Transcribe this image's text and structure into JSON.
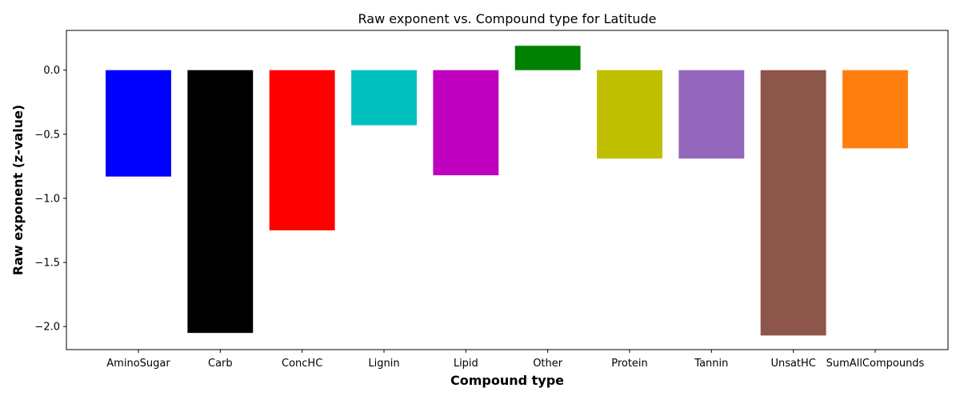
{
  "chart_data": {
    "type": "bar",
    "title": "Raw exponent vs. Compound type for Latitude",
    "xlabel": "Compound type",
    "ylabel": "Raw exponent (z-value)",
    "categories": [
      "AminoSugar",
      "Carb",
      "ConcHC",
      "Lignin",
      "Lipid",
      "Other",
      "Protein",
      "Tannin",
      "UnsatHC",
      "SumAllCompounds"
    ],
    "values": [
      -0.83,
      -2.05,
      -1.25,
      -0.43,
      -0.82,
      0.19,
      -0.69,
      -0.69,
      -2.07,
      -0.61
    ],
    "colors": [
      "#0000ff",
      "#000000",
      "#ff0000",
      "#00bfbf",
      "#bf00bf",
      "#008000",
      "#bfbf00",
      "#9467bd",
      "#8c564b",
      "#ff7f0e"
    ],
    "yticks": [
      0.0,
      -0.5,
      -1.0,
      -1.5,
      -2.0
    ],
    "ytick_labels": [
      "0.0",
      "−0.5",
      "−1.0",
      "−1.5",
      "−2.0"
    ],
    "ylim": [
      -2.18,
      0.31
    ],
    "grid": false,
    "legend": "none"
  }
}
